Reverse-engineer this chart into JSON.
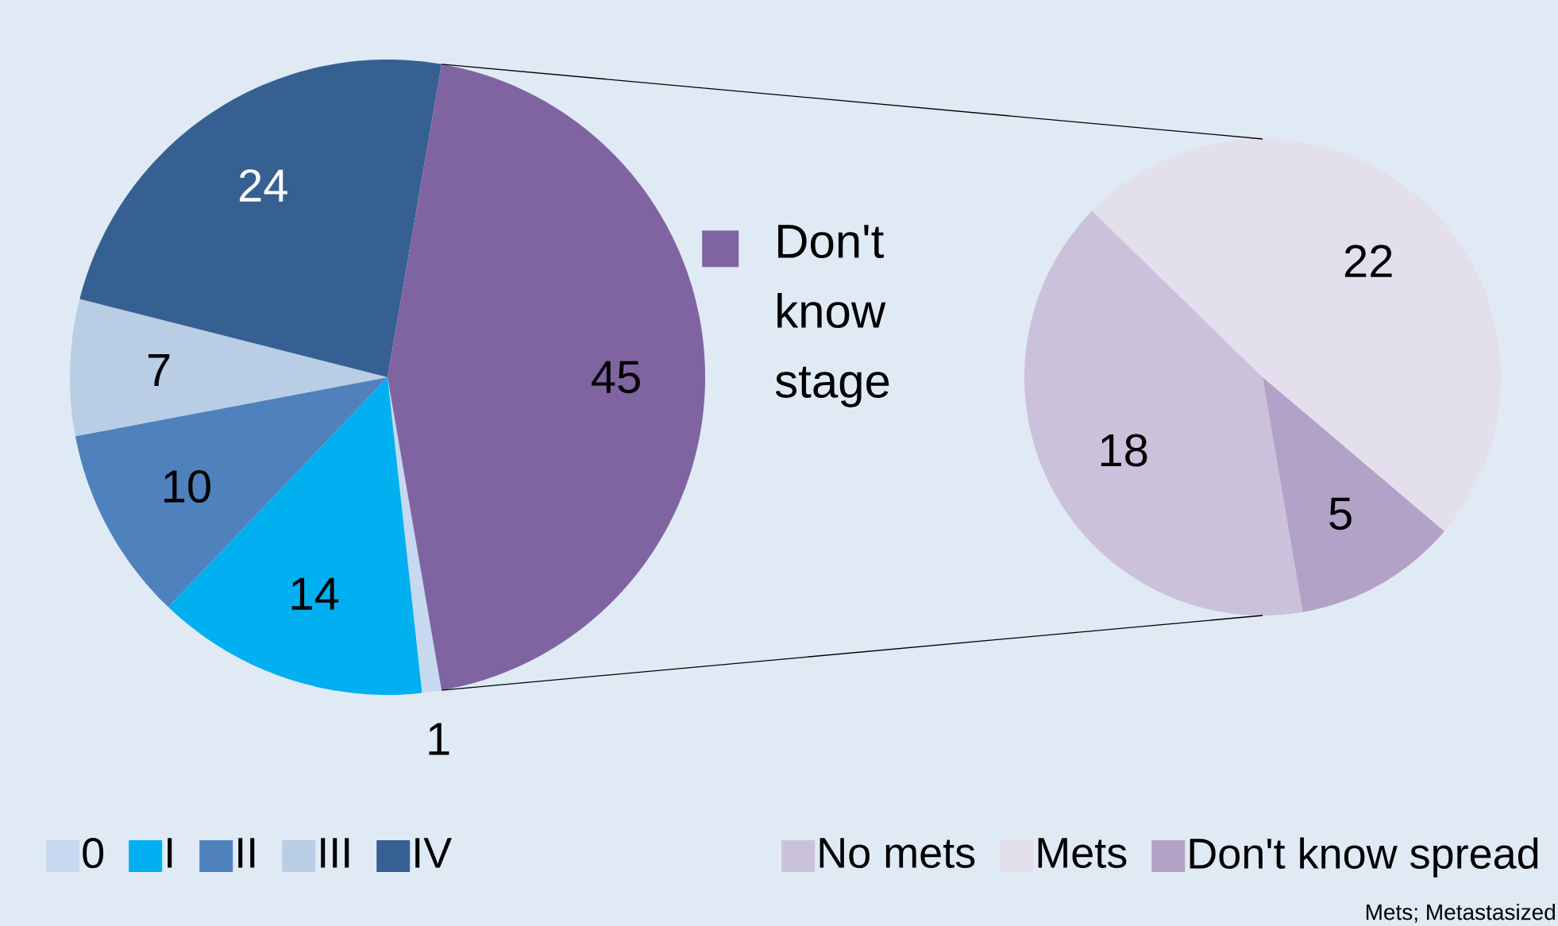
{
  "chart_data": [
    {
      "type": "pie",
      "categories": [
        "0",
        "I",
        "II",
        "III",
        "IV",
        "Don't know stage"
      ],
      "values": [
        1,
        14,
        10,
        7,
        24,
        45
      ],
      "colors": [
        "#c6d9f0",
        "#00b0f0",
        "#4f81bd",
        "#b9cde5",
        "#366092",
        "#8064a2"
      ],
      "data_labels": true,
      "legend": "bottom"
    },
    {
      "type": "pie",
      "categories": [
        "No mets",
        "Mets",
        "Don't know spread"
      ],
      "values": [
        18,
        22,
        5
      ],
      "colors": [
        "#ccc1da",
        "#e4dfec",
        "#b3a2c7"
      ],
      "data_labels": true,
      "legend": "bottom",
      "annotations": [
        "Mets; Metastasized"
      ]
    }
  ]
}
